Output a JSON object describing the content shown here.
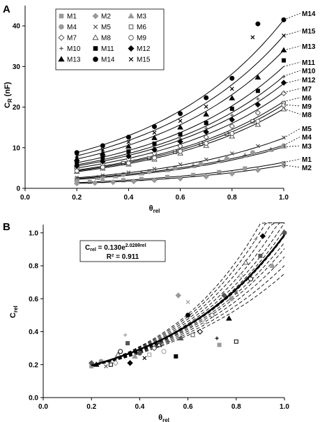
{
  "chart_data": [
    {
      "panel": "A",
      "type": "scatter",
      "xlabel": "θrel",
      "ylabel": "CR (nF)",
      "xlim": [
        0.0,
        1.0
      ],
      "ylim": [
        0,
        45
      ],
      "xticks": [
        "0.0",
        "0.2",
        "0.4",
        "0.6",
        "0.8",
        "1.0"
      ],
      "yticks": [
        "0",
        "10",
        "20",
        "30",
        "40"
      ],
      "legend_placement": "top-left",
      "series": [
        {
          "name": "M1",
          "marker": "square",
          "color": "#999999",
          "fit_end": 6.4,
          "points": [
            [
              0.2,
              1.4
            ],
            [
              0.25,
              1.6
            ],
            [
              0.3,
              1.8
            ],
            [
              0.38,
              2.0
            ],
            [
              0.45,
              2.3
            ],
            [
              0.55,
              2.8
            ],
            [
              0.65,
              3.3
            ],
            [
              0.75,
              4.0
            ],
            [
              0.85,
              4.9
            ],
            [
              1.0,
              6.2
            ]
          ]
        },
        {
          "name": "M2",
          "marker": "diamond",
          "color": "#999999",
          "fit_end": 5.7,
          "points": [
            [
              0.2,
              1.2
            ],
            [
              0.27,
              1.3
            ],
            [
              0.34,
              1.5
            ],
            [
              0.42,
              1.7
            ],
            [
              0.5,
              2.0
            ],
            [
              0.6,
              2.4
            ],
            [
              0.7,
              2.9
            ],
            [
              0.8,
              3.6
            ],
            [
              0.9,
              4.5
            ],
            [
              1.0,
              5.6
            ]
          ]
        },
        {
          "name": "M3",
          "marker": "triangle",
          "color": "#999999",
          "fit_end": 10.2,
          "points": [
            [
              0.2,
              2.2
            ],
            [
              0.28,
              2.6
            ],
            [
              0.35,
              3.0
            ],
            [
              0.45,
              3.7
            ],
            [
              0.55,
              4.5
            ],
            [
              0.65,
              5.5
            ],
            [
              0.75,
              6.7
            ],
            [
              0.85,
              8.1
            ],
            [
              0.95,
              9.5
            ],
            [
              1.0,
              10.3
            ]
          ]
        },
        {
          "name": "M4",
          "marker": "circle",
          "color": "#999999",
          "fit_end": 10.6,
          "points": [
            [
              0.2,
              2.4
            ],
            [
              0.3,
              2.9
            ],
            [
              0.38,
              3.4
            ],
            [
              0.48,
              4.1
            ],
            [
              0.58,
              5.0
            ],
            [
              0.68,
              6.0
            ],
            [
              0.78,
              7.3
            ],
            [
              0.88,
              8.8
            ],
            [
              1.0,
              10.5
            ]
          ]
        },
        {
          "name": "M5",
          "marker": "x",
          "color": "#555555",
          "fit_end": 12.4,
          "points": [
            [
              0.2,
              2.6
            ],
            [
              0.3,
              3.2
            ],
            [
              0.4,
              3.9
            ],
            [
              0.5,
              4.8
            ],
            [
              0.6,
              5.9
            ],
            [
              0.7,
              7.1
            ],
            [
              0.8,
              8.6
            ],
            [
              0.9,
              10.4
            ],
            [
              1.0,
              12.5
            ]
          ]
        },
        {
          "name": "M6",
          "marker": "square-open",
          "color": "#555555",
          "fit_end": 21.4,
          "points": [
            [
              0.2,
              4.5
            ],
            [
              0.3,
              5.4
            ],
            [
              0.38,
              6.2
            ],
            [
              0.48,
              7.4
            ],
            [
              0.58,
              9.0
            ],
            [
              0.68,
              11.0
            ],
            [
              0.78,
              13.4
            ],
            [
              0.88,
              16.5
            ],
            [
              1.0,
              21.0
            ]
          ]
        },
        {
          "name": "M7",
          "marker": "diamond-open",
          "color": "#555555",
          "fit_end": 23.6,
          "points": [
            [
              0.2,
              5.0
            ],
            [
              0.3,
              6.0
            ],
            [
              0.4,
              7.2
            ],
            [
              0.5,
              8.6
            ],
            [
              0.6,
              10.4
            ],
            [
              0.7,
              12.6
            ],
            [
              0.8,
              15.3
            ],
            [
              0.9,
              18.6
            ],
            [
              1.0,
              23.4
            ]
          ]
        },
        {
          "name": "M8",
          "marker": "triangle-open",
          "color": "#555555",
          "fit_end": 19.6,
          "points": [
            [
              0.2,
              4.1
            ],
            [
              0.3,
              4.9
            ],
            [
              0.4,
              5.9
            ],
            [
              0.5,
              7.1
            ],
            [
              0.6,
              8.6
            ],
            [
              0.7,
              10.5
            ],
            [
              0.8,
              12.8
            ],
            [
              0.9,
              15.7
            ],
            [
              1.0,
              19.5
            ]
          ]
        },
        {
          "name": "M9",
          "marker": "circle-open",
          "color": "#555555",
          "fit_end": 20.6,
          "points": [
            [
              0.2,
              4.3
            ],
            [
              0.3,
              5.2
            ],
            [
              0.4,
              6.2
            ],
            [
              0.5,
              7.5
            ],
            [
              0.6,
              9.1
            ],
            [
              0.7,
              11.1
            ],
            [
              0.8,
              13.5
            ],
            [
              0.9,
              16.5
            ],
            [
              1.0,
              20.5
            ]
          ]
        },
        {
          "name": "M10",
          "marker": "plus",
          "color": "#555555",
          "fit_end": 27.6,
          "points": [
            [
              0.2,
              5.8
            ],
            [
              0.3,
              7.0
            ],
            [
              0.4,
              8.4
            ],
            [
              0.5,
              10.1
            ],
            [
              0.6,
              12.2
            ],
            [
              0.7,
              14.8
            ],
            [
              0.8,
              18.0
            ],
            [
              0.9,
              22.0
            ],
            [
              1.0,
              27.5
            ]
          ]
        },
        {
          "name": "M11",
          "marker": "square",
          "color": "#000000",
          "fit_end": 30.0,
          "points": [
            [
              0.2,
              6.3
            ],
            [
              0.3,
              7.6
            ],
            [
              0.4,
              9.1
            ],
            [
              0.5,
              11.0
            ],
            [
              0.6,
              13.3
            ],
            [
              0.7,
              16.1
            ],
            [
              0.8,
              19.6
            ],
            [
              0.9,
              24.0
            ],
            [
              1.0,
              31.5
            ]
          ]
        },
        {
          "name": "M12",
          "marker": "diamond",
          "color": "#000000",
          "fit_end": 25.8,
          "points": [
            [
              0.2,
              5.5
            ],
            [
              0.3,
              6.6
            ],
            [
              0.4,
              7.9
            ],
            [
              0.5,
              9.5
            ],
            [
              0.6,
              11.5
            ],
            [
              0.7,
              13.9
            ],
            [
              0.8,
              16.9
            ],
            [
              0.9,
              20.6
            ],
            [
              1.0,
              26.0
            ]
          ]
        },
        {
          "name": "M13",
          "marker": "triangle",
          "color": "#000000",
          "fit_end": 34.0,
          "points": [
            [
              0.2,
              7.2
            ],
            [
              0.3,
              8.6
            ],
            [
              0.4,
              10.3
            ],
            [
              0.5,
              12.4
            ],
            [
              0.6,
              15.0
            ],
            [
              0.7,
              18.2
            ],
            [
              0.8,
              22.2
            ],
            [
              0.9,
              27.3
            ],
            [
              1.0,
              34.0
            ]
          ]
        },
        {
          "name": "M14",
          "marker": "circle",
          "color": "#000000",
          "fit_end": 41.5,
          "points": [
            [
              0.2,
              8.8
            ],
            [
              0.3,
              10.5
            ],
            [
              0.4,
              12.6
            ],
            [
              0.5,
              15.2
            ],
            [
              0.6,
              18.4
            ],
            [
              0.7,
              22.3
            ],
            [
              0.8,
              27.1
            ],
            [
              0.9,
              40.5
            ],
            [
              1.0,
              41.5
            ]
          ]
        },
        {
          "name": "M15",
          "marker": "x",
          "color": "#000000",
          "fit_end": 37.6,
          "points": [
            [
              0.2,
              8.0
            ],
            [
              0.3,
              9.5
            ],
            [
              0.4,
              11.4
            ],
            [
              0.5,
              13.7
            ],
            [
              0.6,
              16.6
            ],
            [
              0.7,
              20.1
            ],
            [
              0.8,
              24.5
            ],
            [
              0.88,
              37.2
            ],
            [
              1.0,
              37.6
            ]
          ]
        }
      ],
      "right_labels": [
        "M14",
        "M15",
        "M13",
        "M11",
        "M10",
        "M12",
        "M7",
        "M6",
        "M9",
        "M8",
        "M5",
        "M4",
        "M3",
        "M1",
        "M2"
      ]
    },
    {
      "panel": "B",
      "type": "scatter",
      "xlabel": "θrel",
      "ylabel": "Crel",
      "xlim": [
        0.0,
        1.0
      ],
      "ylim": [
        0.0,
        1.05
      ],
      "xticks": [
        "0.0",
        "0.2",
        "0.4",
        "0.6",
        "0.8",
        "1.0"
      ],
      "yticks": [
        "0.0",
        "0.2",
        "0.4",
        "0.6",
        "0.8",
        "1.0"
      ],
      "equation": "Crel = 0.130e2.028θrel",
      "r_squared": "R² = 0.911",
      "fit": {
        "a": 0.13,
        "b": 2.028
      },
      "points": [
        [
          0.2,
          0.19
        ],
        [
          0.2,
          0.21
        ],
        [
          0.22,
          0.2
        ],
        [
          0.24,
          0.22
        ],
        [
          0.26,
          0.19
        ],
        [
          0.28,
          0.2
        ],
        [
          0.3,
          0.21
        ],
        [
          0.31,
          0.26
        ],
        [
          0.32,
          0.28
        ],
        [
          0.34,
          0.38
        ],
        [
          0.35,
          0.33
        ],
        [
          0.36,
          0.21
        ],
        [
          0.38,
          0.25
        ],
        [
          0.4,
          0.27
        ],
        [
          0.42,
          0.24
        ],
        [
          0.44,
          0.26
        ],
        [
          0.46,
          0.3
        ],
        [
          0.48,
          0.32
        ],
        [
          0.5,
          0.28
        ],
        [
          0.52,
          0.34
        ],
        [
          0.55,
          0.25
        ],
        [
          0.56,
          0.62
        ],
        [
          0.57,
          0.36
        ],
        [
          0.6,
          0.5
        ],
        [
          0.6,
          0.58
        ],
        [
          0.62,
          0.38
        ],
        [
          0.65,
          0.4
        ],
        [
          0.67,
          0.46
        ],
        [
          0.7,
          0.5
        ],
        [
          0.72,
          0.36
        ],
        [
          0.73,
          0.32
        ],
        [
          0.75,
          0.62
        ],
        [
          0.77,
          0.48
        ],
        [
          0.78,
          0.6
        ],
        [
          0.8,
          0.64
        ],
        [
          0.8,
          0.34
        ],
        [
          0.82,
          0.74
        ],
        [
          0.84,
          0.82
        ],
        [
          0.86,
          0.72
        ],
        [
          0.88,
          0.96
        ],
        [
          0.9,
          0.86
        ],
        [
          0.91,
          0.98
        ],
        [
          0.95,
          0.8
        ],
        [
          1.0,
          1.0
        ]
      ]
    }
  ],
  "panels": {
    "a_label": "A",
    "b_label": "B"
  }
}
